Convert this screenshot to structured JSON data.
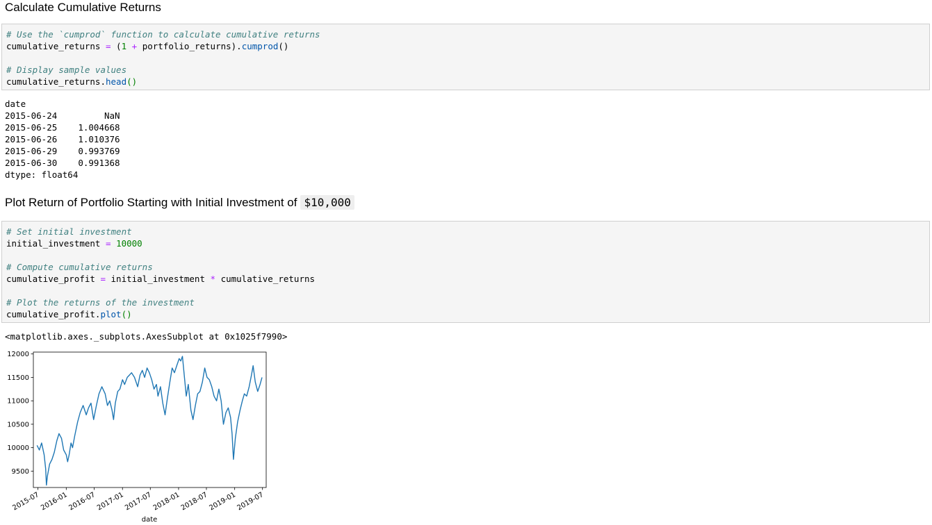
{
  "section1": {
    "title": "Calculate Cumulative Returns",
    "code": {
      "c1": "# Use the `cumprod` function to calculate cumulative returns",
      "l2a": "cumulative_returns ",
      "l2b": "=",
      "l2c": " (",
      "l2d": "1",
      "l2e": " ",
      "l2f": "+",
      "l2g": " portfolio_returns).",
      "l2h": "cumprod",
      "l2i": "()",
      "c4": "# Display sample values",
      "l5a": "cumulative_returns.",
      "l5b": "head",
      "l5c": "()"
    },
    "output": "date\n2015-06-24         NaN\n2015-06-25    1.004668\n2015-06-26    1.010376\n2015-06-29    0.993769\n2015-06-30    0.991368\ndtype: float64"
  },
  "section2": {
    "title": "Plot Return of Portfolio Starting with Initial Investment of",
    "title_code": "$10,000",
    "code": {
      "c1": "# Set initial investment",
      "l2a": "initial_investment ",
      "l2b": "=",
      "l2c": " ",
      "l2d": "10000",
      "c4": "# Compute cumulative returns",
      "l5a": "cumulative_profit ",
      "l5b": "=",
      "l5c": " initial_investment ",
      "l5d": "*",
      "l5e": " cumulative_returns",
      "c7": "# Plot the returns of the investment",
      "l8a": "cumulative_profit.",
      "l8b": "plot",
      "l8c": "()"
    },
    "output": "<matplotlib.axes._subplots.AxesSubplot at 0x1025f7990>"
  },
  "chart_data": {
    "type": "line",
    "xlabel": "date",
    "ylabel": "",
    "title": "",
    "line_color": "#1f77b4",
    "xlim": [
      "2015-06-01",
      "2019-07-25"
    ],
    "ylim": [
      9150,
      12040
    ],
    "yticks": [
      9500,
      10000,
      10500,
      11000,
      11500,
      12000
    ],
    "xticks": [
      "2015-07",
      "2016-01",
      "2016-07",
      "2017-01",
      "2017-07",
      "2018-01",
      "2018-07",
      "2019-01",
      "2019-07"
    ],
    "series": [
      {
        "x": [
          "2015-06-25",
          "2015-07-10",
          "2015-07-25",
          "2015-08-10",
          "2015-08-20",
          "2015-08-25",
          "2015-09-01",
          "2015-09-15",
          "2015-09-30",
          "2015-10-15",
          "2015-11-01",
          "2015-11-15",
          "2015-12-01",
          "2015-12-15",
          "2016-01-01",
          "2016-01-10",
          "2016-01-20",
          "2016-02-01",
          "2016-02-11",
          "2016-02-25",
          "2016-03-15",
          "2016-04-01",
          "2016-04-20",
          "2016-05-10",
          "2016-05-25",
          "2016-06-10",
          "2016-06-27",
          "2016-07-15",
          "2016-08-01",
          "2016-08-20",
          "2016-09-10",
          "2016-09-25",
          "2016-10-10",
          "2016-10-25",
          "2016-11-04",
          "2016-11-15",
          "2016-12-01",
          "2016-12-15",
          "2017-01-01",
          "2017-01-15",
          "2017-02-01",
          "2017-02-15",
          "2017-03-01",
          "2017-03-20",
          "2017-04-10",
          "2017-04-25",
          "2017-05-10",
          "2017-05-25",
          "2017-06-10",
          "2017-06-25",
          "2017-07-10",
          "2017-07-25",
          "2017-08-10",
          "2017-08-20",
          "2017-09-05",
          "2017-09-20",
          "2017-10-05",
          "2017-10-20",
          "2017-11-05",
          "2017-11-20",
          "2017-12-05",
          "2017-12-20",
          "2018-01-05",
          "2018-01-15",
          "2018-01-26",
          "2018-02-08",
          "2018-02-20",
          "2018-03-05",
          "2018-03-22",
          "2018-04-05",
          "2018-04-20",
          "2018-05-05",
          "2018-05-20",
          "2018-06-05",
          "2018-06-20",
          "2018-07-05",
          "2018-07-20",
          "2018-08-05",
          "2018-08-20",
          "2018-09-05",
          "2018-09-20",
          "2018-10-05",
          "2018-10-20",
          "2018-11-05",
          "2018-11-20",
          "2018-12-05",
          "2018-12-15",
          "2018-12-24",
          "2019-01-05",
          "2019-01-20",
          "2019-02-05",
          "2019-02-20",
          "2019-03-05",
          "2019-03-20",
          "2019-04-05",
          "2019-04-20",
          "2019-05-01",
          "2019-05-15",
          "2019-05-31",
          "2019-06-15",
          "2019-06-28"
        ],
        "y": [
          10050,
          9950,
          10100,
          9850,
          9550,
          9200,
          9400,
          9650,
          9750,
          9900,
          10150,
          10300,
          10200,
          9950,
          9850,
          9700,
          9850,
          10100,
          10000,
          10250,
          10550,
          10750,
          10900,
          10700,
          10850,
          10950,
          10600,
          10900,
          11150,
          11300,
          11150,
          10900,
          11000,
          10800,
          10600,
          10950,
          11200,
          11250,
          11450,
          11350,
          11500,
          11550,
          11600,
          11500,
          11300,
          11550,
          11650,
          11500,
          11700,
          11600,
          11450,
          11250,
          11350,
          11100,
          11300,
          10950,
          10700,
          11050,
          11400,
          11700,
          11600,
          11750,
          11900,
          11850,
          11950,
          11500,
          11100,
          11350,
          10800,
          10600,
          10900,
          11150,
          11200,
          11400,
          11700,
          11500,
          11450,
          11300,
          11100,
          11000,
          11250,
          11000,
          10500,
          10750,
          10850,
          10650,
          10300,
          9750,
          10200,
          10550,
          10800,
          11000,
          11150,
          11100,
          11300,
          11550,
          11750,
          11400,
          11200,
          11350,
          11500
        ]
      }
    ]
  }
}
